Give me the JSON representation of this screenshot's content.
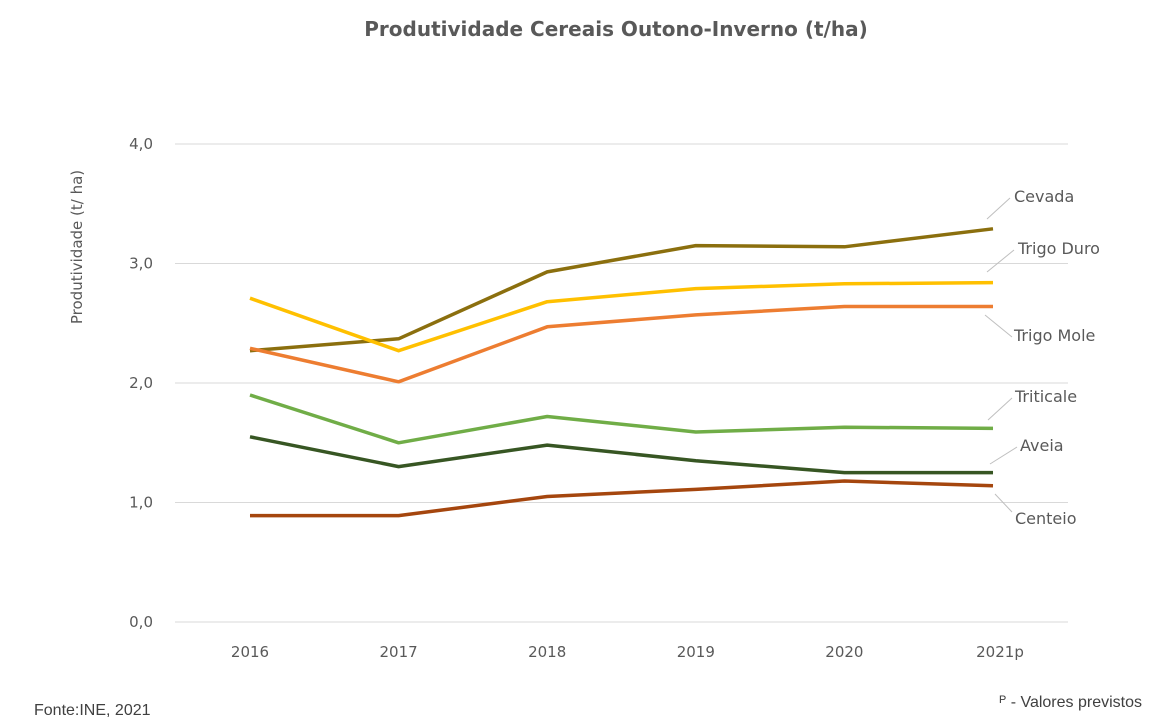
{
  "chart_data": {
    "type": "line",
    "title": "Produtividade Cereais Outono-Inverno (t/ha)",
    "xlabel": "",
    "ylabel": "Produtividade  (t/ ha)",
    "categories": [
      "2016",
      "2017",
      "2018",
      "2019",
      "2020",
      "2021p"
    ],
    "ylim": [
      0,
      4
    ],
    "yticks": [
      0,
      1,
      2,
      3,
      4
    ],
    "ytick_labels": [
      "0,0",
      "1,0",
      "2,0",
      "3,0",
      "4,0"
    ],
    "grid": true,
    "legend": "inline labels at right end of lines",
    "series": [
      {
        "name": "Cevada",
        "color": "#8B6F0E",
        "values": [
          2.27,
          2.37,
          2.93,
          3.15,
          3.14,
          3.29
        ]
      },
      {
        "name": "Trigo Duro",
        "color": "#FFC000",
        "values": [
          2.71,
          2.27,
          2.68,
          2.79,
          2.83,
          2.84
        ]
      },
      {
        "name": "Trigo Mole",
        "color": "#ED7D31",
        "values": [
          2.29,
          2.01,
          2.47,
          2.57,
          2.64,
          2.64
        ]
      },
      {
        "name": "Triticale",
        "color": "#70AD47",
        "values": [
          1.9,
          1.5,
          1.72,
          1.59,
          1.63,
          1.62
        ]
      },
      {
        "name": "Aveia",
        "color": "#375623",
        "values": [
          1.55,
          1.3,
          1.48,
          1.35,
          1.25,
          1.25
        ]
      },
      {
        "name": "Centeio",
        "color": "#A5460E",
        "values": [
          0.89,
          0.89,
          1.05,
          1.11,
          1.18,
          1.14
        ]
      }
    ],
    "source": "Fonte:INE, 2021",
    "footnote": "ᴾ - Valores previstos"
  }
}
